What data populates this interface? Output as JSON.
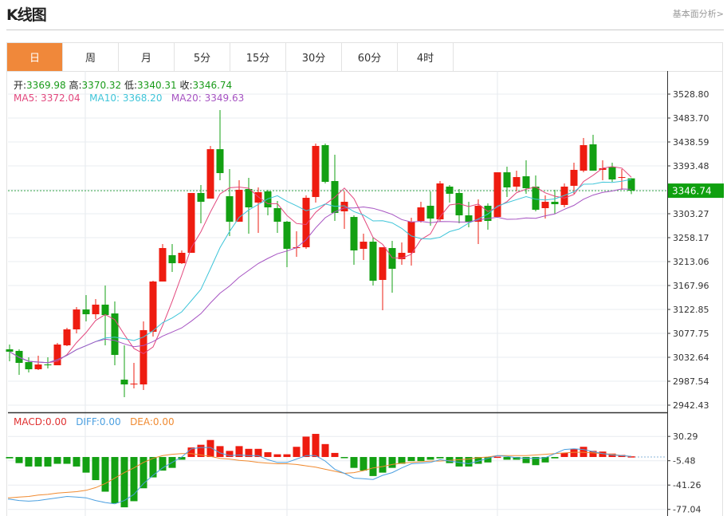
{
  "header": {
    "title": "K线图",
    "link": "基本面分析>"
  },
  "tabs": [
    {
      "label": "日",
      "active": true
    },
    {
      "label": "周"
    },
    {
      "label": "月"
    },
    {
      "label": "5分"
    },
    {
      "label": "15分"
    },
    {
      "label": "30分"
    },
    {
      "label": "60分"
    },
    {
      "label": "4时"
    }
  ],
  "info": {
    "open_label": "开:",
    "open": "3369.98",
    "high_label": "高:",
    "high": "3370.32",
    "low_label": "低:",
    "low": "3340.31",
    "close_label": "收:",
    "close": "3346.74",
    "ma5": "MA5: 3372.04",
    "ma10": "MA10: 3368.20",
    "ma20": "MA20: 3349.63"
  },
  "macd_legend": {
    "macd": "MACD:0.00",
    "diff": "DIFF:0.00",
    "dea": "DEA:0.00"
  },
  "colors": {
    "up": "#ee1c10",
    "down": "#13a013",
    "ma5": "#e2477d",
    "ma10": "#3fc5d9",
    "ma20": "#a653c2",
    "diff": "#4b9fe0",
    "dea": "#f08a30",
    "tab_active": "#f0883a"
  },
  "chart_data": [
    {
      "type": "candlestick",
      "current_price": "3346.74",
      "ylim": [
        2942.43,
        3528.8
      ],
      "y_ticks": [
        "3528.80",
        "3483.70",
        "3438.59",
        "3393.48",
        "3303.27",
        "3258.17",
        "3213.06",
        "3167.96",
        "3122.85",
        "3077.75",
        "3032.64",
        "2987.54",
        "2942.43"
      ],
      "grid": true,
      "ma_periods": [
        5,
        10,
        20
      ],
      "ohlc": [
        [
          3047.7,
          3056.7,
          3025.1,
          3043.2
        ],
        [
          3044.7,
          3047.7,
          2999.6,
          3022.1
        ],
        [
          3023.6,
          3032.6,
          3004.1,
          3010.1
        ],
        [
          3010.1,
          3035.6,
          3008.6,
          3019.1
        ],
        [
          3019.1,
          3032.6,
          3011.6,
          3017.6
        ],
        [
          3017.6,
          3059.7,
          3017.6,
          3056.7
        ],
        [
          3055.2,
          3088.3,
          3053.7,
          3085.3
        ],
        [
          3085.3,
          3127.4,
          3077.7,
          3122.8
        ],
        [
          3122.8,
          3149.9,
          3100.3,
          3113.8
        ],
        [
          3113.8,
          3142.4,
          3104.8,
          3131.9
        ],
        [
          3131.9,
          3167.9,
          3055.2,
          3112.3
        ],
        [
          3115.3,
          3137.9,
          3017.6,
          3037.1
        ],
        [
          2990.5,
          3055.2,
          2957.5,
          2981.5
        ],
        [
          2981.5,
          3022.1,
          2974.0,
          2983.0
        ],
        [
          2981.5,
          3100.3,
          2971.0,
          3083.8
        ],
        [
          3080.7,
          3177.0,
          3071.7,
          3175.5
        ],
        [
          3175.5,
          3246.1,
          3175.5,
          3238.6
        ],
        [
          3225.1,
          3246.1,
          3193.5,
          3210.0
        ],
        [
          3210.0,
          3234.1,
          3208.5,
          3229.6
        ],
        [
          3229.6,
          3342.4,
          3229.6,
          3342.4
        ],
        [
          3342.4,
          3357.4,
          3285.2,
          3325.8
        ],
        [
          3331.8,
          3431.1,
          3331.8,
          3425.0
        ],
        [
          3425.0,
          3498.7,
          3366.4,
          3379.9
        ],
        [
          3336.3,
          3387.5,
          3261.2,
          3288.2
        ],
        [
          3288.2,
          3366.4,
          3288.2,
          3348.4
        ],
        [
          3349.9,
          3370.9,
          3265.7,
          3315.3
        ],
        [
          3324.3,
          3352.9,
          3267.2,
          3343.9
        ],
        [
          3345.4,
          3348.4,
          3300.3,
          3315.3
        ],
        [
          3313.8,
          3327.3,
          3267.2,
          3288.2
        ],
        [
          3288.2,
          3289.7,
          3202.5,
          3237.1
        ],
        [
          3238.6,
          3270.2,
          3222.1,
          3240.1
        ],
        [
          3240.1,
          3337.8,
          3237.1,
          3333.3
        ],
        [
          3334.8,
          3435.6,
          3324.3,
          3431.1
        ],
        [
          3432.6,
          3435.6,
          3360.4,
          3363.4
        ],
        [
          3364.9,
          3414.5,
          3289.7,
          3304.8
        ],
        [
          3307.8,
          3345.4,
          3274.7,
          3325.8
        ],
        [
          3297.2,
          3300.3,
          3207.0,
          3234.1
        ],
        [
          3237.1,
          3265.7,
          3216.1,
          3250.6
        ],
        [
          3250.6,
          3258.2,
          3167.9,
          3177.0
        ],
        [
          3178.5,
          3240.1,
          3121.3,
          3240.1
        ],
        [
          3238.6,
          3252.1,
          3154.4,
          3199.5
        ],
        [
          3217.6,
          3249.1,
          3207.0,
          3229.6
        ],
        [
          3229.6,
          3295.7,
          3205.5,
          3288.2
        ],
        [
          3289.7,
          3325.8,
          3286.7,
          3315.3
        ],
        [
          3318.3,
          3345.4,
          3280.7,
          3294.2
        ],
        [
          3292.7,
          3364.9,
          3288.2,
          3360.4
        ],
        [
          3354.4,
          3357.4,
          3324.3,
          3340.9
        ],
        [
          3342.4,
          3349.9,
          3285.2,
          3300.3
        ],
        [
          3300.3,
          3325.8,
          3277.7,
          3288.2
        ],
        [
          3288.2,
          3330.3,
          3246.1,
          3318.3
        ],
        [
          3318.3,
          3322.8,
          3273.2,
          3289.7
        ],
        [
          3297.2,
          3381.4,
          3297.2,
          3381.4
        ],
        [
          3381.4,
          3392.0,
          3334.8,
          3352.9
        ],
        [
          3354.4,
          3384.5,
          3345.4,
          3372.4
        ],
        [
          3373.9,
          3404.0,
          3340.9,
          3351.4
        ],
        [
          3354.4,
          3375.4,
          3307.8,
          3310.8
        ],
        [
          3313.8,
          3337.8,
          3294.2,
          3325.8
        ],
        [
          3325.8,
          3348.4,
          3303.3,
          3321.3
        ],
        [
          3319.8,
          3360.4,
          3315.3,
          3354.4
        ],
        [
          3355.9,
          3399.5,
          3340.9,
          3386.0
        ],
        [
          3384.5,
          3446.1,
          3381.4,
          3432.6
        ],
        [
          3434.1,
          3452.1,
          3384.5,
          3384.5
        ],
        [
          3386.0,
          3404.0,
          3366.4,
          3389.0
        ],
        [
          3392.0,
          3399.5,
          3363.4,
          3367.9
        ],
        [
          3370.9,
          3387.5,
          3348.4,
          3372.4
        ],
        [
          3369.98,
          3370.32,
          3340.31,
          3346.74
        ]
      ]
    },
    {
      "type": "macd",
      "ylim": [
        -77.04,
        30.29
      ],
      "y_ticks": [
        "30.29",
        "-5.48",
        "-41.26",
        "-77.04"
      ],
      "histogram": [
        -2,
        -9,
        -14,
        -14,
        -14,
        -10,
        -10,
        -14,
        -23,
        -34,
        -51,
        -68,
        -74,
        -65,
        -46,
        -30,
        -20,
        -16,
        -4,
        14,
        18,
        25,
        16,
        9,
        16,
        12,
        12,
        7,
        4,
        4,
        15,
        30,
        34,
        19,
        6,
        -1,
        -16,
        -20,
        -28,
        -23,
        -16,
        -10,
        -6,
        -6,
        -4,
        -2,
        -9,
        -14,
        -14,
        -10,
        -8,
        0.5,
        -4,
        -4,
        -9,
        -12,
        -8,
        -2,
        6,
        12,
        15,
        9,
        8,
        5,
        3,
        1
      ],
      "diff": [
        -62,
        -64,
        -65,
        -64,
        -62,
        -60,
        -58,
        -59,
        -60,
        -64,
        -67,
        -69,
        -64,
        -55,
        -39,
        -27,
        -16,
        -8,
        0,
        12,
        14,
        14,
        6,
        2,
        3,
        2,
        2,
        -4,
        -8,
        -8,
        -3,
        2,
        2,
        -6,
        -18,
        -24,
        -31,
        -32,
        -33,
        -27,
        -23,
        -16,
        -10,
        -9,
        -8,
        -4,
        -6,
        -8,
        -10,
        -6,
        -2,
        2,
        1,
        -1,
        -2,
        -2,
        -1,
        5,
        11,
        12,
        11,
        8,
        5,
        3,
        2,
        1
      ],
      "dea": [
        -60,
        -59,
        -58,
        -56,
        -55,
        -53,
        -52,
        -51,
        -49,
        -45,
        -39,
        -31,
        -23,
        -16,
        -8,
        -2,
        2,
        4,
        5,
        5,
        3,
        1,
        -2,
        -3,
        -5,
        -6,
        -8,
        -9,
        -10,
        -10,
        -11,
        -13,
        -15,
        -18,
        -21,
        -24,
        -23,
        -20,
        -16,
        -14,
        -11,
        -9,
        -8,
        -7,
        -6,
        -6,
        -5,
        -4,
        -3,
        -1,
        0,
        2,
        2,
        2,
        2,
        3,
        4,
        5,
        6,
        7,
        7,
        6,
        5,
        4,
        2,
        1
      ]
    }
  ]
}
